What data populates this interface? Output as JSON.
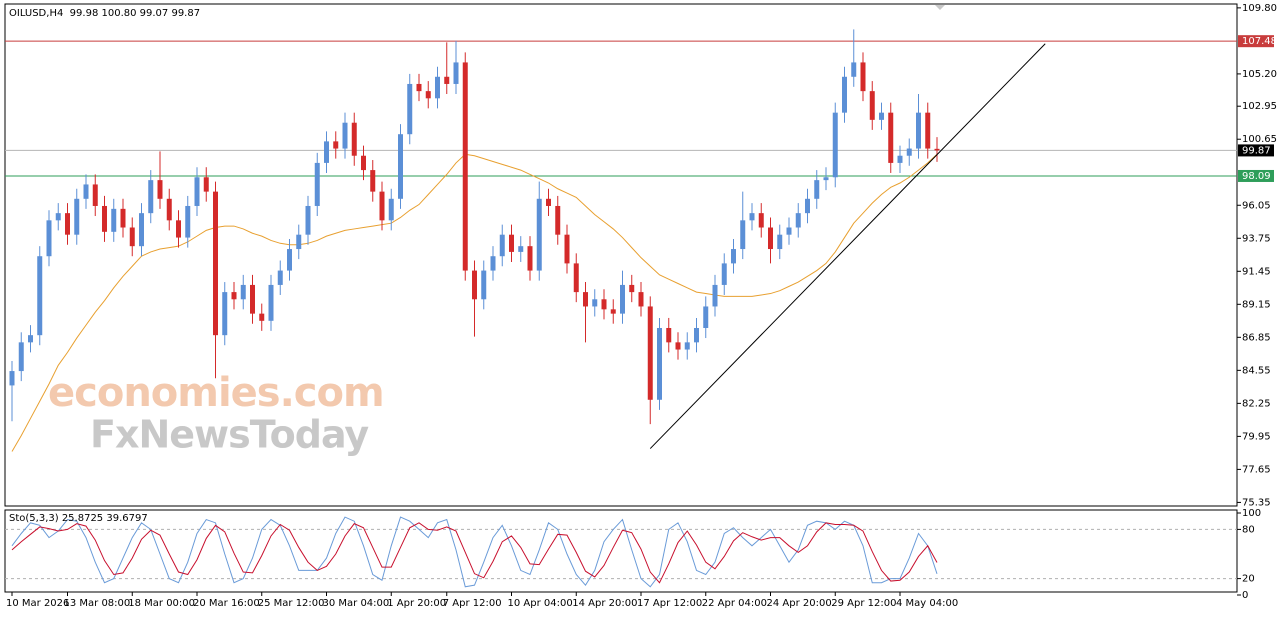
{
  "chart_data": [
    {
      "type": "candlestick",
      "title": "OILUSD,H4  99.98 100.80 99.07 99.87",
      "categories": [
        "10 Mar 2026",
        null,
        null,
        null,
        null,
        null,
        "13 Mar 08:00",
        null,
        null,
        null,
        null,
        null,
        null,
        "18 Mar 00:00",
        null,
        null,
        null,
        null,
        null,
        null,
        "20 Mar 16:00",
        null,
        null,
        null,
        null,
        null,
        null,
        "25 Mar 12:00",
        null,
        null,
        null,
        null,
        null,
        null,
        "30 Mar 04:00",
        null,
        null,
        null,
        null,
        null,
        null,
        "1 Apr 20:00",
        null,
        null,
        null,
        null,
        null,
        "7 Apr 12:00",
        null,
        null,
        null,
        null,
        null,
        null,
        "10 Apr 04:00",
        null,
        null,
        null,
        null,
        null,
        null,
        "14 Apr 20:00",
        null,
        null,
        null,
        null,
        null,
        null,
        "17 Apr 12:00",
        null,
        null,
        null,
        null,
        null,
        null,
        "22 Apr 04:00",
        null,
        null,
        null,
        null,
        null,
        null,
        "24 Apr 20:00",
        null,
        null,
        null,
        null,
        null,
        null,
        "29 Apr 12:00",
        null,
        null,
        null,
        null,
        null,
        null,
        "4 May 04:00",
        null,
        null,
        null,
        null
      ],
      "open": [
        83.5,
        84.5,
        86.5,
        87.0,
        92.5,
        95.0,
        95.5,
        94.0,
        96.5,
        97.5,
        96.0,
        94.2,
        95.8,
        94.5,
        93.2,
        95.5,
        97.8,
        96.5,
        95.0,
        93.8,
        96.0,
        98.0,
        97.0,
        87.0,
        90.0,
        89.5,
        90.5,
        88.5,
        88.0,
        90.5,
        91.5,
        93.0,
        94.0,
        96.0,
        99.0,
        100.5,
        100.0,
        101.8,
        99.5,
        98.5,
        97.0,
        95.0,
        96.5,
        101.0,
        104.5,
        104.0,
        103.5,
        105.0,
        104.5,
        106.0,
        91.5,
        89.5,
        91.5,
        92.5,
        94.0,
        92.8,
        93.2,
        91.5,
        96.5,
        96.0,
        94.0,
        92.0,
        90.0,
        89.0,
        89.5,
        88.8,
        88.5,
        90.5,
        90.0,
        89.0,
        82.5,
        87.5,
        86.5,
        86.0,
        86.5,
        87.5,
        89.0,
        90.5,
        92.0,
        93.0,
        95.0,
        95.5,
        94.5,
        93.0,
        94.0,
        94.5,
        95.5,
        96.5,
        97.8,
        98.0,
        102.5,
        105.0,
        106.0,
        104.0,
        102.0,
        102.5,
        99.0,
        99.5,
        100.0,
        102.5,
        99.98
      ],
      "high": [
        85.2,
        87.2,
        87.7,
        93.2,
        95.7,
        96.2,
        96.2,
        97.2,
        98.2,
        98.2,
        96.7,
        96.5,
        96.5,
        95.2,
        96.2,
        98.5,
        99.8,
        97.2,
        95.7,
        96.7,
        98.7,
        98.7,
        97.7,
        90.7,
        90.7,
        91.2,
        91.2,
        89.2,
        91.2,
        92.2,
        93.7,
        94.7,
        96.7,
        99.7,
        101.2,
        101.2,
        102.5,
        102.5,
        100.2,
        99.2,
        97.7,
        97.2,
        101.7,
        105.2,
        105.2,
        104.7,
        105.7,
        107.4,
        107.5,
        106.7,
        92.2,
        92.2,
        93.2,
        94.7,
        94.7,
        93.9,
        93.9,
        97.7,
        97.2,
        96.7,
        94.7,
        92.7,
        90.7,
        90.2,
        90.2,
        89.5,
        91.5,
        91.2,
        90.7,
        89.7,
        88.2,
        88.2,
        87.2,
        87.2,
        88.2,
        89.7,
        91.2,
        92.7,
        93.7,
        97.0,
        96.2,
        96.2,
        95.2,
        94.7,
        95.2,
        96.2,
        97.2,
        98.5,
        98.7,
        103.2,
        105.7,
        108.3,
        106.7,
        104.7,
        103.2,
        103.2,
        100.2,
        100.7,
        103.8,
        103.2,
        100.8
      ],
      "low": [
        81.0,
        83.8,
        85.8,
        86.3,
        91.8,
        94.3,
        93.3,
        93.3,
        95.8,
        95.3,
        93.5,
        93.5,
        93.8,
        92.5,
        92.5,
        94.8,
        95.8,
        94.3,
        93.1,
        93.1,
        95.3,
        96.3,
        84.0,
        86.3,
        88.8,
        88.8,
        87.8,
        87.3,
        87.3,
        89.8,
        90.8,
        92.3,
        93.3,
        95.3,
        98.3,
        99.3,
        99.3,
        98.8,
        97.8,
        96.3,
        94.3,
        94.3,
        95.8,
        100.3,
        103.3,
        102.8,
        102.8,
        103.8,
        103.8,
        90.8,
        86.9,
        88.8,
        90.8,
        91.8,
        92.1,
        92.1,
        90.8,
        90.8,
        95.3,
        93.3,
        91.3,
        89.3,
        86.5,
        88.3,
        88.1,
        87.8,
        87.8,
        89.3,
        88.3,
        80.8,
        81.8,
        85.8,
        85.3,
        85.3,
        85.8,
        86.8,
        88.3,
        89.8,
        91.3,
        92.3,
        94.3,
        93.8,
        92.0,
        92.3,
        93.3,
        93.8,
        94.8,
        95.8,
        97.1,
        97.3,
        101.8,
        104.3,
        103.3,
        101.3,
        101.3,
        98.3,
        98.3,
        98.8,
        99.3,
        99.3,
        99.07
      ],
      "close": [
        84.5,
        86.5,
        87.0,
        92.5,
        95.0,
        95.5,
        94.0,
        96.5,
        97.5,
        96.0,
        94.2,
        95.8,
        94.5,
        93.2,
        95.5,
        97.8,
        96.5,
        95.0,
        93.8,
        96.0,
        98.0,
        97.0,
        87.0,
        90.0,
        89.5,
        90.5,
        88.5,
        88.0,
        90.5,
        91.5,
        93.0,
        94.0,
        96.0,
        99.0,
        100.5,
        100.0,
        101.8,
        99.5,
        98.5,
        97.0,
        95.0,
        96.5,
        101.0,
        104.5,
        104.0,
        103.5,
        105.0,
        104.5,
        106.0,
        91.5,
        89.5,
        91.5,
        92.5,
        94.0,
        92.8,
        93.2,
        91.5,
        96.5,
        96.0,
        94.0,
        92.0,
        90.0,
        89.0,
        89.5,
        88.8,
        88.5,
        90.5,
        90.0,
        89.0,
        82.5,
        87.5,
        86.5,
        86.0,
        86.5,
        87.5,
        89.0,
        90.5,
        92.0,
        93.0,
        95.0,
        95.5,
        94.5,
        93.0,
        94.0,
        94.5,
        95.5,
        96.5,
        97.8,
        98.0,
        102.5,
        105.0,
        106.0,
        104.0,
        102.0,
        102.5,
        99.0,
        99.5,
        100.0,
        102.5,
        100.0,
        99.87
      ],
      "up_color": "#5b8fd6",
      "down_color": "#d42a2a",
      "ylim": [
        75.1,
        110.0
      ],
      "yticks": [
        {
          "value": 109.8,
          "label": "109.80"
        },
        {
          "value": 105.2,
          "label": "105.20"
        },
        102.95,
        100.65,
        96.05,
        93.75,
        91.45,
        89.15,
        86.85,
        84.55,
        82.25,
        79.95,
        77.65,
        75.35
      ],
      "overlays": [
        {
          "type": "line",
          "color": "#e8a030",
          "values": [
            78.9,
            80.0,
            81.2,
            82.4,
            83.6,
            84.9,
            85.8,
            86.8,
            87.7,
            88.6,
            89.4,
            90.3,
            91.1,
            91.8,
            92.5,
            92.8,
            93.0,
            93.1,
            93.2,
            93.5,
            93.9,
            94.3,
            94.5,
            94.6,
            94.6,
            94.4,
            94.1,
            93.9,
            93.6,
            93.4,
            93.3,
            93.3,
            93.4,
            93.6,
            93.9,
            94.1,
            94.3,
            94.4,
            94.5,
            94.6,
            94.7,
            94.8,
            95.2,
            95.7,
            96.1,
            96.8,
            97.5,
            98.2,
            99.0,
            99.6,
            99.5,
            99.3,
            99.1,
            98.9,
            98.7,
            98.5,
            98.2,
            97.9,
            97.6,
            97.2,
            96.9,
            96.6,
            96.0,
            95.4,
            94.9,
            94.4,
            93.8,
            93.1,
            92.4,
            91.8,
            91.2,
            90.9,
            90.6,
            90.3,
            90.0,
            89.9,
            89.8,
            89.7,
            89.7,
            89.7,
            89.7,
            89.8,
            89.9,
            90.1,
            90.4,
            90.7,
            91.1,
            91.5,
            92.0,
            92.8,
            93.8,
            94.8,
            95.5,
            96.2,
            96.8,
            97.3,
            97.6,
            98.0,
            98.5,
            99.0,
            99.6
          ]
        }
      ],
      "hlines": [
        {
          "value": 107.48,
          "color": "#c83c3c"
        },
        {
          "value": 99.87,
          "color": "#b4b4b4"
        },
        {
          "value": 98.09,
          "color": "#2e9e5a"
        }
      ],
      "trendline": {
        "x": [
          69,
          111.7
        ],
        "y": [
          79.1,
          107.3
        ],
        "color": "#000000"
      },
      "watermark": [
        "economies.com",
        "FxNewsToday"
      ]
    },
    {
      "type": "line",
      "title": "Sto(5,3,3) 25.8725 39.6797",
      "series": [
        {
          "color": "#6a9bd8",
          "values": [
            60,
            75,
            88,
            85,
            70,
            78,
            92,
            90,
            70,
            40,
            15,
            20,
            45,
            70,
            88,
            80,
            50,
            20,
            15,
            40,
            75,
            92,
            88,
            50,
            15,
            20,
            45,
            80,
            92,
            85,
            60,
            30,
            30,
            30,
            45,
            75,
            95,
            90,
            60,
            25,
            18,
            60,
            95,
            90,
            80,
            70,
            88,
            92,
            55,
            10,
            12,
            40,
            70,
            85,
            60,
            30,
            25,
            55,
            88,
            80,
            50,
            25,
            12,
            30,
            65,
            80,
            92,
            55,
            20,
            10,
            25,
            80,
            88,
            65,
            30,
            25,
            40,
            75,
            82,
            70,
            60,
            70,
            80,
            60,
            40,
            55,
            85,
            90,
            88,
            80,
            90,
            85,
            60,
            15,
            15,
            20,
            20,
            45,
            75,
            60,
            25.8725
          ]
        },
        {
          "color": "#c8102e",
          "values": [
            55,
            65,
            74,
            83,
            81,
            78,
            80,
            87,
            84,
            67,
            42,
            25,
            27,
            45,
            68,
            79,
            73,
            50,
            28,
            25,
            43,
            69,
            85,
            77,
            51,
            28,
            27,
            48,
            72,
            86,
            79,
            58,
            40,
            30,
            35,
            50,
            72,
            87,
            82,
            58,
            34,
            34,
            58,
            82,
            88,
            80,
            79,
            83,
            78,
            52,
            26,
            21,
            41,
            65,
            72,
            58,
            38,
            37,
            56,
            74,
            73,
            52,
            29,
            22,
            36,
            58,
            79,
            76,
            56,
            28,
            15,
            38,
            64,
            78,
            61,
            40,
            32,
            47,
            66,
            76,
            71,
            67,
            70,
            70,
            60,
            52,
            60,
            77,
            88,
            86,
            86,
            85,
            78,
            53,
            30,
            17,
            18,
            28,
            47,
            60,
            39.6797
          ]
        }
      ],
      "ylim": [
        0,
        100
      ],
      "yticks": [
        100,
        80,
        20,
        0
      ]
    }
  ]
}
